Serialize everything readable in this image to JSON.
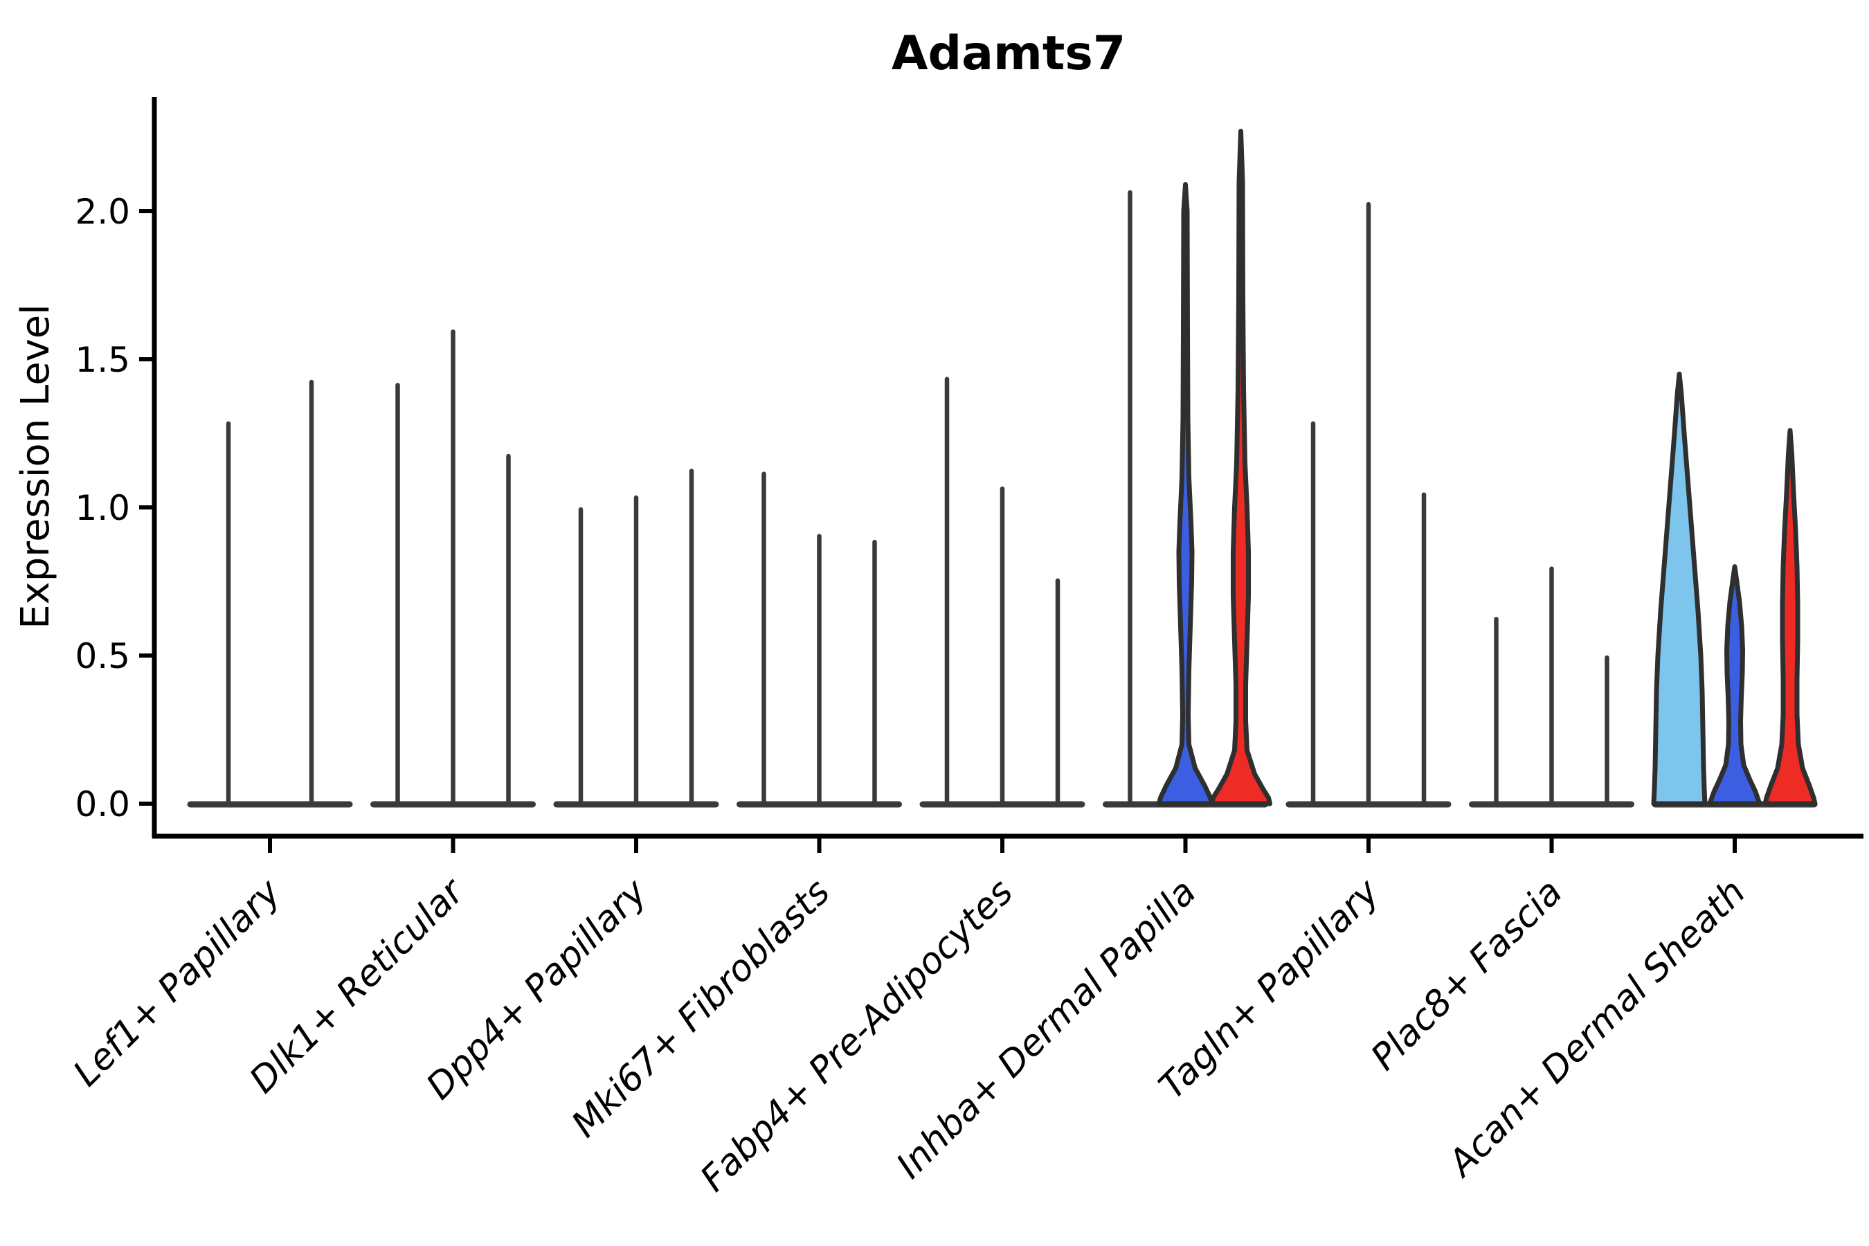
{
  "chart_data": {
    "type": "violin",
    "title": "Adamts7",
    "ylabel": "Expression Level",
    "xlabel": "",
    "ylim": [
      0,
      2.35
    ],
    "yticks": [
      0,
      0.5,
      1.0,
      1.5,
      2.0
    ],
    "ytick_labels": [
      "0.0",
      "0.5",
      "1.0",
      "1.5",
      "2.0"
    ],
    "grid": false,
    "legend": "none",
    "categories": [
      "Lef1+ Papillary",
      "Dlk1+ Reticular",
      "Dpp4+ Papillary",
      "Mki67+ Fibroblasts",
      "Fabp4+ Pre-Adipocytes",
      "Inhba+ Dermal Papilla",
      "Tagln+ Papillary",
      "Plac8+ Fascia",
      "Acan+ Dermal Sheath"
    ],
    "colors": {
      "spike": "#3A3A3A",
      "edge": "#2F2F2F",
      "axis": "#000000",
      "skyblue": "#7EC5EE",
      "blue": "#3C5FE1",
      "red": "#EE2B24",
      "background": "#FFFFFF"
    },
    "groups": [
      {
        "category": "Lef1+ Papillary",
        "violins": [
          {
            "style": "spike",
            "max": 1.29
          },
          {
            "style": "spike",
            "max": 1.43
          }
        ]
      },
      {
        "category": "Dlk1+ Reticular",
        "violins": [
          {
            "style": "spike",
            "max": 1.42
          },
          {
            "style": "spike",
            "max": 1.6
          },
          {
            "style": "spike",
            "max": 1.18
          }
        ]
      },
      {
        "category": "Dpp4+ Papillary",
        "violins": [
          {
            "style": "spike",
            "max": 1.0
          },
          {
            "style": "spike",
            "max": 1.04
          },
          {
            "style": "spike",
            "max": 1.13
          }
        ]
      },
      {
        "category": "Mki67+ Fibroblasts",
        "violins": [
          {
            "style": "spike",
            "max": 1.12
          },
          {
            "style": "spike",
            "max": 0.91
          },
          {
            "style": "spike",
            "max": 0.89
          }
        ]
      },
      {
        "category": "Fabp4+ Pre-Adipocytes",
        "violins": [
          {
            "style": "spike",
            "max": 1.44
          },
          {
            "style": "spike",
            "max": 1.07
          },
          {
            "style": "spike",
            "max": 0.76
          }
        ]
      },
      {
        "category": "Inhba+ Dermal Papilla",
        "violins": [
          {
            "style": "spike",
            "max": 2.07
          },
          {
            "style": "filled",
            "color": "blue",
            "max": 2.09,
            "profile": [
              [
                2.09,
                0
              ],
              [
                2.0,
                2.5
              ],
              [
                1.6,
                3
              ],
              [
                1.3,
                3.5
              ],
              [
                1.1,
                5
              ],
              [
                0.95,
                8
              ],
              [
                0.85,
                9.5
              ],
              [
                0.75,
                9
              ],
              [
                0.6,
                7
              ],
              [
                0.45,
                5
              ],
              [
                0.3,
                4
              ],
              [
                0.2,
                5
              ],
              [
                0.12,
                14
              ],
              [
                0.06,
                28
              ],
              [
                0.02,
                36
              ],
              [
                0,
                38
              ]
            ]
          },
          {
            "style": "filled",
            "color": "red",
            "max": 2.27,
            "profile": [
              [
                2.27,
                0
              ],
              [
                2.1,
                2.5
              ],
              [
                1.7,
                3
              ],
              [
                1.4,
                4
              ],
              [
                1.15,
                6
              ],
              [
                1.0,
                9
              ],
              [
                0.85,
                11
              ],
              [
                0.7,
                11
              ],
              [
                0.55,
                9
              ],
              [
                0.4,
                7
              ],
              [
                0.28,
                7
              ],
              [
                0.18,
                9
              ],
              [
                0.1,
                20
              ],
              [
                0.05,
                32
              ],
              [
                0.02,
                40
              ],
              [
                0,
                42
              ]
            ]
          }
        ]
      },
      {
        "category": "Tagln+ Papillary",
        "violins": [
          {
            "style": "spike",
            "max": 1.29
          },
          {
            "style": "spike",
            "max": 2.03
          },
          {
            "style": "spike",
            "max": 1.05
          }
        ]
      },
      {
        "category": "Plac8+ Fascia",
        "violins": [
          {
            "style": "spike",
            "max": 0.63
          },
          {
            "style": "spike",
            "max": 0.8
          },
          {
            "style": "spike",
            "max": 0.5
          }
        ]
      },
      {
        "category": "Acan+ Dermal Sheath",
        "violins": [
          {
            "style": "filled",
            "color": "skyblue",
            "max": 1.45,
            "profile": [
              [
                1.45,
                0
              ],
              [
                1.38,
                3
              ],
              [
                1.25,
                7
              ],
              [
                1.1,
                12
              ],
              [
                0.95,
                17
              ],
              [
                0.8,
                22
              ],
              [
                0.65,
                27
              ],
              [
                0.5,
                31
              ],
              [
                0.38,
                33
              ],
              [
                0.25,
                34
              ],
              [
                0.12,
                35
              ],
              [
                0.05,
                36
              ],
              [
                0,
                37
              ]
            ]
          },
          {
            "style": "filled",
            "color": "blue",
            "max": 0.8,
            "profile": [
              [
                0.8,
                0
              ],
              [
                0.75,
                3
              ],
              [
                0.68,
                7
              ],
              [
                0.6,
                10
              ],
              [
                0.52,
                11.5
              ],
              [
                0.44,
                11
              ],
              [
                0.36,
                9.5
              ],
              [
                0.28,
                8.5
              ],
              [
                0.2,
                9
              ],
              [
                0.13,
                13
              ],
              [
                0.08,
                22
              ],
              [
                0.04,
                30
              ],
              [
                0,
                36
              ]
            ]
          },
          {
            "style": "filled",
            "color": "red",
            "max": 1.26,
            "profile": [
              [
                1.26,
                0
              ],
              [
                1.18,
                2.5
              ],
              [
                1.05,
                5
              ],
              [
                0.92,
                8
              ],
              [
                0.8,
                10
              ],
              [
                0.68,
                11
              ],
              [
                0.55,
                11
              ],
              [
                0.42,
                10
              ],
              [
                0.3,
                10
              ],
              [
                0.2,
                12
              ],
              [
                0.12,
                18
              ],
              [
                0.06,
                28
              ],
              [
                0.02,
                34
              ],
              [
                0,
                36
              ]
            ]
          }
        ]
      }
    ]
  }
}
